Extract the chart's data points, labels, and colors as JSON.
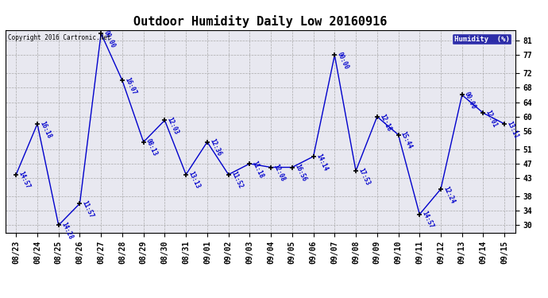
{
  "title": "Outdoor Humidity Daily Low 20160916",
  "copyright": "Copyright 2016 Cartronic.Net",
  "legend_label": "Humidity  (%)",
  "x_labels": [
    "08/23",
    "08/24",
    "08/25",
    "08/26",
    "08/27",
    "08/28",
    "08/29",
    "08/30",
    "08/31",
    "09/01",
    "09/02",
    "09/03",
    "09/04",
    "09/05",
    "09/06",
    "09/07",
    "09/08",
    "09/09",
    "09/10",
    "09/11",
    "09/12",
    "09/13",
    "09/14",
    "09/15"
  ],
  "y_values": [
    44,
    58,
    30,
    36,
    83,
    70,
    53,
    59,
    44,
    53,
    44,
    47,
    46,
    46,
    49,
    77,
    45,
    60,
    55,
    33,
    40,
    66,
    61,
    58
  ],
  "time_labels": [
    "14:57",
    "16:18",
    "14:28",
    "11:57",
    "00:00",
    "16:07",
    "08:13",
    "12:03",
    "13:13",
    "12:36",
    "11:52",
    "11:18",
    "12:08",
    "16:56",
    "14:14",
    "00:00",
    "17:53",
    "12:18",
    "15:44",
    "14:57",
    "12:24",
    "00:00",
    "12:01",
    "13:11"
  ],
  "ylim": [
    28,
    84
  ],
  "yticks": [
    30,
    34,
    38,
    43,
    47,
    51,
    56,
    60,
    64,
    68,
    72,
    77,
    81
  ],
  "line_color": "#0000CC",
  "marker_color": "#000000",
  "bg_color": "#FFFFFF",
  "plot_bg_color": "#E8E8F0",
  "grid_color": "#AAAAAA",
  "title_fontsize": 11,
  "tick_fontsize": 7,
  "label_fontsize": 6,
  "legend_bg": "#000099",
  "legend_fg": "#FFFFFF"
}
